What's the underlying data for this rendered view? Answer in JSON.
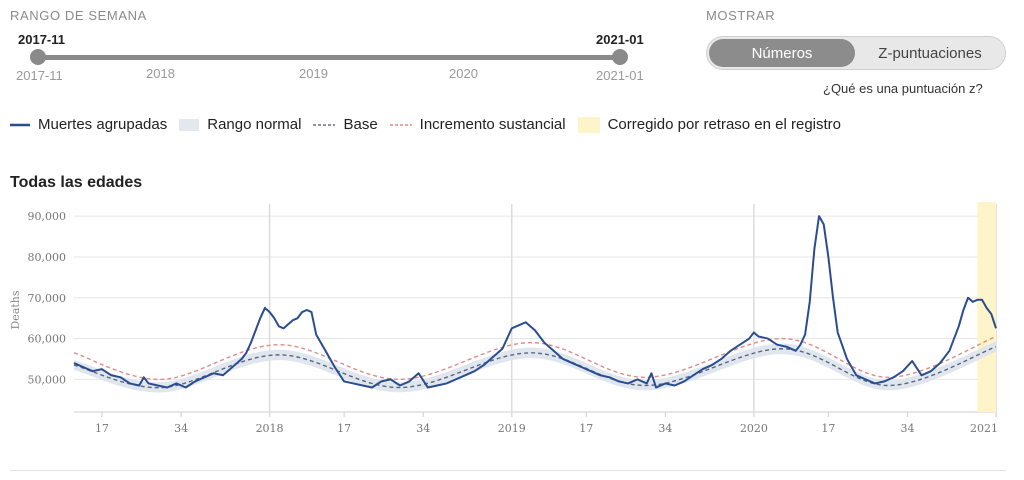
{
  "range": {
    "section_label": "RANGO DE SEMANA",
    "start_label": "2017-11",
    "end_label": "2021-01",
    "ticks": [
      "2017-11",
      "2018",
      "2019",
      "2020",
      "2021-01"
    ]
  },
  "display": {
    "section_label": "MOSTRAR",
    "options": [
      "Números",
      "Z-puntuaciones"
    ],
    "selected": "Números",
    "zscore_link": "¿Qué es una puntuación z?"
  },
  "legend": [
    {
      "label": "Muertes agrupadas",
      "kind": "line",
      "color": "#2a4d8f"
    },
    {
      "label": "Rango normal",
      "kind": "band",
      "color": "#e3e8ef"
    },
    {
      "label": "Base",
      "kind": "dash",
      "color": "#666e80"
    },
    {
      "label": "Incremento sustancial",
      "kind": "dash",
      "color": "#e08a8a"
    },
    {
      "label": "Corregido por retraso en el registro",
      "kind": "box",
      "color": "#fdf5c9"
    }
  ],
  "chart_title": "Todas las edades",
  "chart_data": {
    "type": "line",
    "title": "Todas las edades",
    "ylabel": "Deaths",
    "ylim": [
      42000,
      92000
    ],
    "yticks": [
      50000,
      60000,
      70000,
      80000,
      90000
    ],
    "ytick_labels": [
      "50,000",
      "60,000",
      "70,000",
      "80,000",
      "90,000"
    ],
    "xlim": [
      "2017-W11",
      "2021-W01"
    ],
    "xtick_labels": [
      "17",
      "34",
      "2018",
      "17",
      "34",
      "2019",
      "17",
      "34",
      "2020",
      "17",
      "34",
      "2021"
    ],
    "grid": true,
    "colors": {
      "deaths": "#2a4d8f",
      "band": "#dde3ec",
      "base": "#5d6680",
      "substantial": "#e08a8a",
      "corrected": "#fdf5c9"
    },
    "series": [
      {
        "name": "Muertes agrupadas",
        "x": [
          "2017-W11",
          "2017-W13",
          "2017-W15",
          "2017-W17",
          "2017-W19",
          "2017-W21",
          "2017-W23",
          "2017-W25",
          "2017-W26",
          "2017-W27",
          "2017-W29",
          "2017-W31",
          "2017-W33",
          "2017-W35",
          "2017-W37",
          "2017-W39",
          "2017-W41",
          "2017-W43",
          "2017-W45",
          "2017-W47",
          "2017-W48",
          "2017-W49",
          "2017-W50",
          "2017-W51",
          "2017-W52",
          "2018-W01",
          "2018-W02",
          "2018-W03",
          "2018-W04",
          "2018-W05",
          "2018-W06",
          "2018-W07",
          "2018-W08",
          "2018-W09",
          "2018-W10",
          "2018-W11",
          "2018-W13",
          "2018-W15",
          "2018-W17",
          "2018-W19",
          "2018-W21",
          "2018-W23",
          "2018-W25",
          "2018-W27",
          "2018-W29",
          "2018-W31",
          "2018-W33",
          "2018-W35",
          "2018-W37",
          "2018-W39",
          "2018-W41",
          "2018-W43",
          "2018-W45",
          "2018-W47",
          "2018-W49",
          "2018-W51",
          "2018-W52",
          "2019-W01",
          "2019-W02",
          "2019-W03",
          "2019-W04",
          "2019-W06",
          "2019-W08",
          "2019-W10",
          "2019-W12",
          "2019-W14",
          "2019-W16",
          "2019-W18",
          "2019-W20",
          "2019-W22",
          "2019-W24",
          "2019-W26",
          "2019-W28",
          "2019-W30",
          "2019-W31",
          "2019-W32",
          "2019-W34",
          "2019-W36",
          "2019-W38",
          "2019-W40",
          "2019-W42",
          "2019-W44",
          "2019-W46",
          "2019-W48",
          "2019-W50",
          "2019-W52",
          "2020-W01",
          "2020-W02",
          "2020-W04",
          "2020-W06",
          "2020-W08",
          "2020-W10",
          "2020-W11",
          "2020-W12",
          "2020-W13",
          "2020-W14",
          "2020-W15",
          "2020-W16",
          "2020-W17",
          "2020-W18",
          "2020-W19",
          "2020-W21",
          "2020-W23",
          "2020-W25",
          "2020-W27",
          "2020-W29",
          "2020-W31",
          "2020-W33",
          "2020-W35",
          "2020-W37",
          "2020-W39",
          "2020-W41",
          "2020-W43",
          "2020-W45",
          "2020-W46",
          "2020-W47",
          "2020-W48",
          "2020-W49",
          "2020-W50",
          "2020-W51",
          "2020-W52",
          "2021-W01"
        ],
        "values": [
          54000,
          53000,
          52000,
          52500,
          51000,
          50500,
          49000,
          48500,
          50500,
          49000,
          48500,
          48000,
          49000,
          48000,
          49500,
          50500,
          51500,
          51000,
          53000,
          55000,
          56500,
          59000,
          62000,
          65000,
          67500,
          66500,
          65000,
          63000,
          62500,
          63500,
          64500,
          65000,
          66500,
          67000,
          66500,
          61000,
          57000,
          53000,
          49500,
          49000,
          48500,
          48000,
          49500,
          50000,
          48500,
          49500,
          51500,
          48000,
          48500,
          49000,
          50000,
          51000,
          52000,
          53500,
          55500,
          57500,
          60000,
          62500,
          63000,
          63500,
          64000,
          62000,
          59000,
          57000,
          55000,
          54000,
          53000,
          52000,
          51000,
          50500,
          49500,
          49000,
          50000,
          49000,
          51500,
          48000,
          49000,
          48500,
          49500,
          51000,
          52500,
          53500,
          55000,
          57000,
          58500,
          60000,
          61500,
          60500,
          60000,
          58500,
          58000,
          57000,
          58500,
          61000,
          69000,
          82000,
          90000,
          88000,
          80000,
          70000,
          61500,
          55000,
          51000,
          50000,
          49000,
          49500,
          50500,
          52000,
          54500,
          51000,
          52000,
          54000,
          57000,
          63000,
          67000,
          70000,
          69000,
          69500,
          69500,
          67500,
          66000,
          62500
        ]
      },
      {
        "name": "Base",
        "x": [
          "2017-W11",
          "2017-W30",
          "2018-W03",
          "2018-W29",
          "2019-W05",
          "2019-W30",
          "2020-W07",
          "2020-W30",
          "2021-W01"
        ],
        "values": [
          53500,
          48000,
          56000,
          48000,
          56500,
          48500,
          57500,
          48500,
          58000
        ]
      },
      {
        "name": "Incremento sustancial",
        "x": [
          "2017-W11",
          "2017-W30",
          "2018-W03",
          "2018-W29",
          "2019-W05",
          "2019-W30",
          "2020-W07",
          "2020-W30",
          "2021-W01"
        ],
        "values": [
          56500,
          50000,
          58500,
          50000,
          59000,
          50500,
          60000,
          50500,
          60500
        ]
      }
    ],
    "normal_range": {
      "x": [
        "2017-W11",
        "2017-W30",
        "2018-W03",
        "2018-W29",
        "2019-W05",
        "2019-W30",
        "2020-W07",
        "2020-W30",
        "2021-W01"
      ],
      "upper": [
        54700,
        49300,
        57300,
        49300,
        57800,
        49800,
        58800,
        49800,
        59300
      ],
      "lower": [
        52300,
        46800,
        54700,
        46800,
        55200,
        47300,
        56200,
        47300,
        56700
      ]
    },
    "corrected_range": [
      "2020-W49",
      "2021-W01"
    ]
  }
}
